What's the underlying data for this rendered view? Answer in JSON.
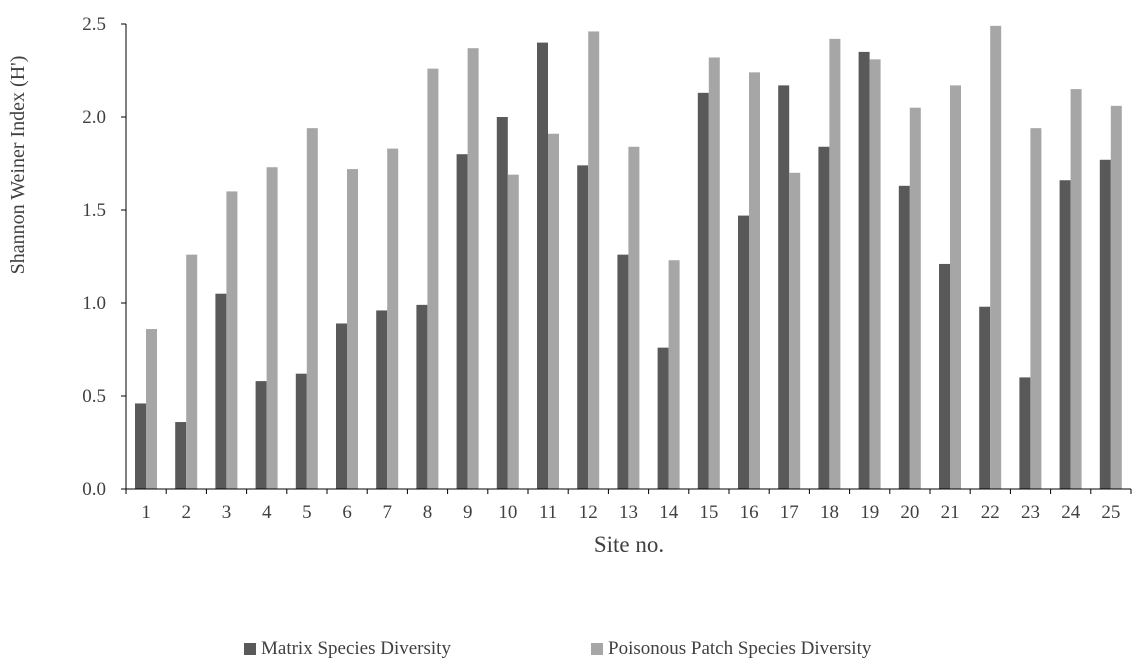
{
  "chart_data": {
    "type": "bar",
    "xlabel": "Site no.",
    "ylabel": "Shannon Weiner Index (H')",
    "ylim": [
      0,
      2.5
    ],
    "yticks": [
      "0.0",
      "0.5",
      "1.0",
      "1.5",
      "2.0",
      "2.5"
    ],
    "grid": false,
    "legend_position": "bottom",
    "categories": [
      "1",
      "2",
      "3",
      "4",
      "5",
      "6",
      "7",
      "8",
      "9",
      "10",
      "11",
      "12",
      "13",
      "14",
      "15",
      "16",
      "17",
      "18",
      "19",
      "20",
      "21",
      "22",
      "23",
      "24",
      "25"
    ],
    "series": [
      {
        "name": "Matrix Species Diversity",
        "color": "#595959",
        "values": [
          0.46,
          0.36,
          1.05,
          0.58,
          0.62,
          0.89,
          0.96,
          0.99,
          1.8,
          2.0,
          2.4,
          1.74,
          1.26,
          0.76,
          2.13,
          1.47,
          2.17,
          1.84,
          2.35,
          1.63,
          1.21,
          0.98,
          0.6,
          1.66,
          1.77
        ]
      },
      {
        "name": "Poisonous Patch Species Diversity",
        "color": "#a6a6a6",
        "values": [
          0.86,
          1.26,
          1.6,
          1.73,
          1.94,
          1.72,
          1.83,
          2.26,
          2.37,
          1.69,
          1.91,
          2.46,
          1.84,
          1.23,
          2.32,
          2.24,
          1.7,
          2.42,
          2.31,
          2.05,
          2.17,
          2.49,
          1.94,
          2.15,
          2.06
        ]
      }
    ]
  }
}
